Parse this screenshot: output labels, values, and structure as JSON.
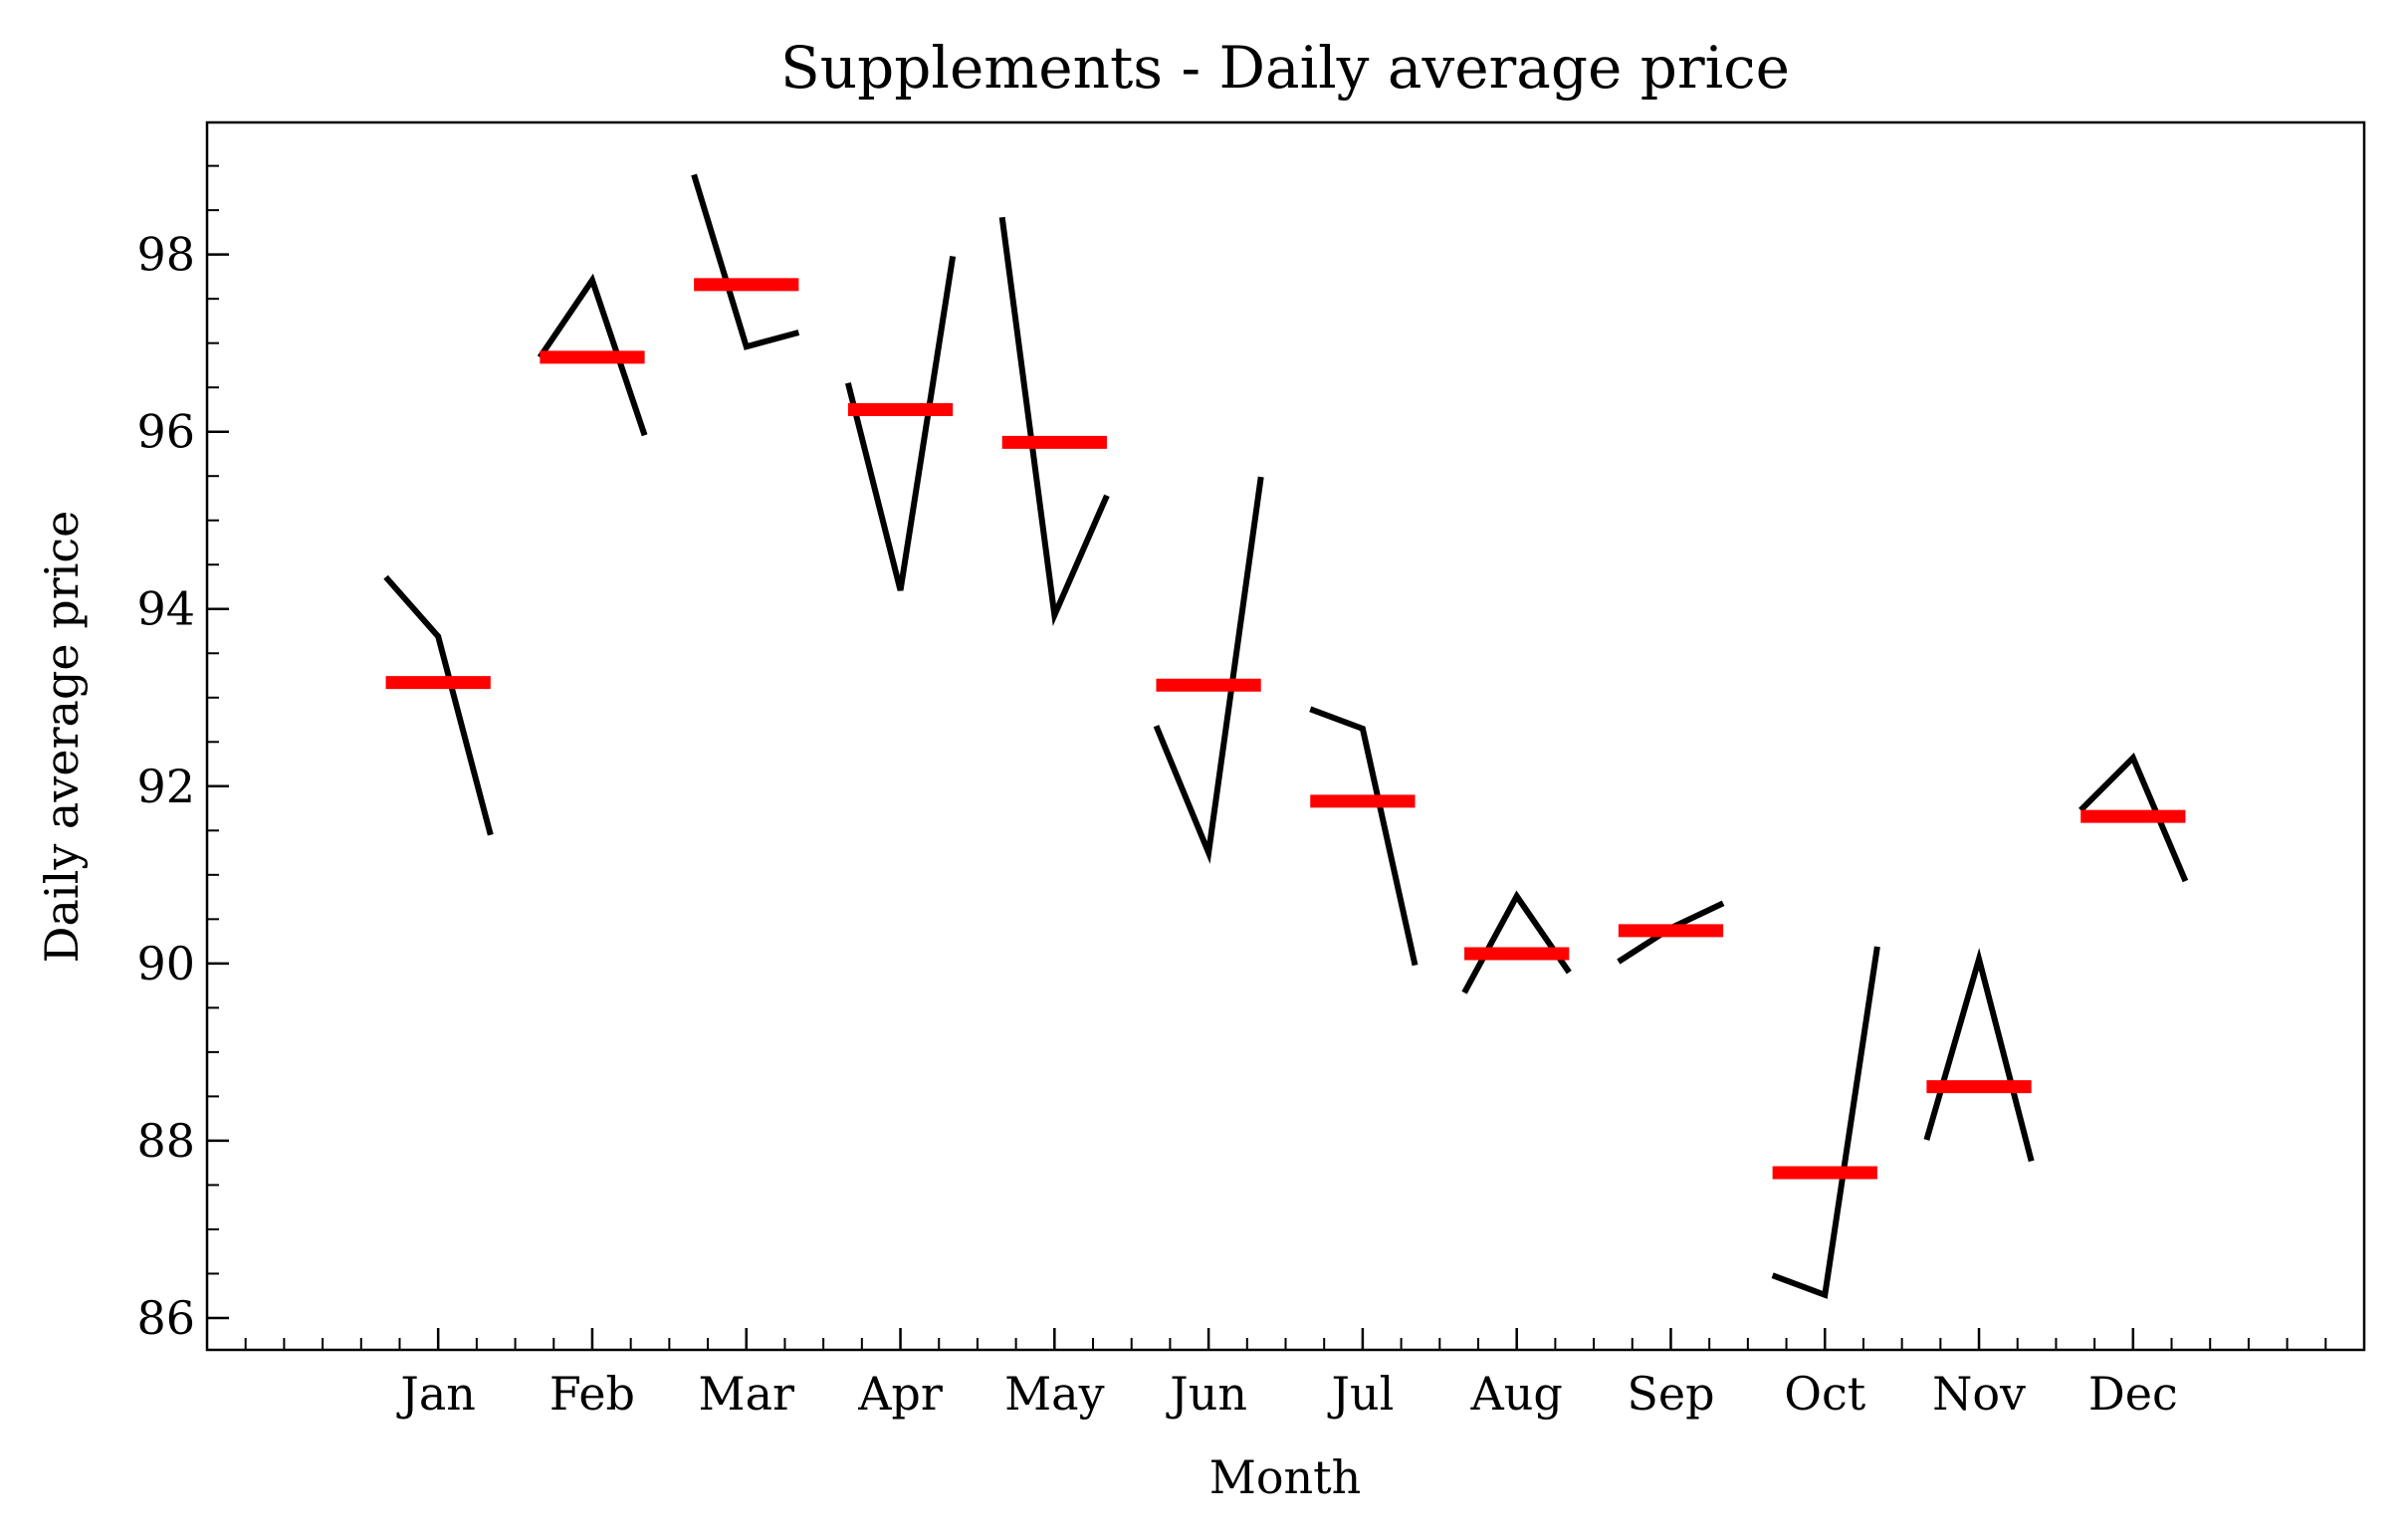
{
  "chart_data": {
    "type": "month_plot",
    "title": "Supplements - Daily average price",
    "xlabel": "Month",
    "ylabel": "Daily average price",
    "categories": [
      "Jan",
      "Feb",
      "Mar",
      "Apr",
      "May",
      "Jun",
      "Jul",
      "Aug",
      "Sep",
      "Oct",
      "Nov",
      "Dec"
    ],
    "values": [
      [
        94.36,
        93.69,
        91.45
      ],
      [
        96.84,
        97.71,
        95.96
      ],
      [
        98.9,
        96.96,
        97.12
      ],
      [
        96.55,
        94.21,
        97.98
      ],
      [
        98.42,
        93.93,
        95.28
      ],
      [
        92.68,
        91.25,
        95.49
      ],
      [
        92.87,
        92.65,
        89.98
      ],
      [
        89.67,
        90.76,
        89.9
      ],
      [
        90.02,
        90.4,
        90.68
      ],
      [
        86.48,
        86.26,
        90.19
      ],
      [
        88.01,
        90.05,
        87.77
      ],
      [
        91.73,
        92.32,
        90.93
      ]
    ],
    "means": [
      93.17,
      96.84,
      97.66,
      96.25,
      95.88,
      93.14,
      91.83,
      90.11,
      90.37,
      87.64,
      88.61,
      91.66
    ],
    "color": "#000000",
    "mean_color": "#ff0000",
    "xlim": [
      -0.5,
      13.5
    ],
    "xticks": [
      {
        "value": 1,
        "label": "Jan"
      },
      {
        "value": 2,
        "label": "Feb"
      },
      {
        "value": 3,
        "label": "Mar"
      },
      {
        "value": 4,
        "label": "Apr"
      },
      {
        "value": 5,
        "label": "May"
      },
      {
        "value": 6,
        "label": "Jun"
      },
      {
        "value": 7,
        "label": "Jul"
      },
      {
        "value": 8,
        "label": "Aug"
      },
      {
        "value": 9,
        "label": "Sep"
      },
      {
        "value": 10,
        "label": "Oct"
      },
      {
        "value": 11,
        "label": "Nov"
      },
      {
        "value": 12,
        "label": "Dec"
      }
    ],
    "ylim": [
      85.64,
      99.49
    ],
    "yticks": [
      86,
      88,
      90,
      92,
      94,
      96,
      98
    ]
  }
}
